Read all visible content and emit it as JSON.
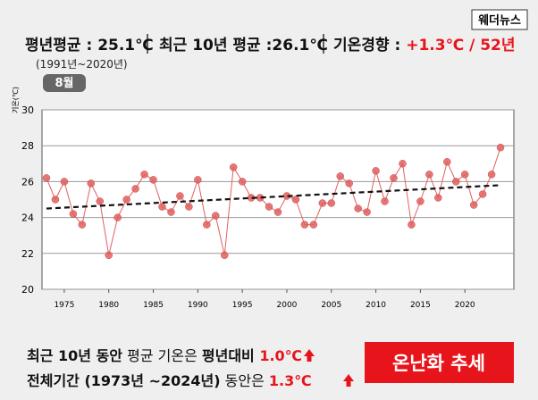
{
  "header": {
    "normal_avg": "평년평균 : 25.1℃",
    "normal_period": "(1991년~2020년)",
    "recent_avg": "최근 10년 평균 :26.1℃",
    "trend_label": "기온경향 : ",
    "trend_value": "+1.3℃ / 52년",
    "month": "8월",
    "logo": "웨더뉴스"
  },
  "chart_data": {
    "type": "line",
    "y_label": "기온(℃)",
    "x": [
      1973,
      1974,
      1975,
      1976,
      1977,
      1978,
      1979,
      1980,
      1981,
      1982,
      1983,
      1984,
      1985,
      1986,
      1987,
      1988,
      1989,
      1990,
      1991,
      1992,
      1993,
      1994,
      1995,
      1996,
      1997,
      1998,
      1999,
      2000,
      2001,
      2002,
      2003,
      2004,
      2005,
      2006,
      2007,
      2008,
      2009,
      2010,
      2011,
      2012,
      2013,
      2014,
      2015,
      2016,
      2017,
      2018,
      2019,
      2020,
      2021,
      2022,
      2023,
      2024
    ],
    "series": [
      {
        "color": "#e0605f",
        "values": [
          26.2,
          25.0,
          26.0,
          24.2,
          23.6,
          25.9,
          24.9,
          21.9,
          24.0,
          25.0,
          25.6,
          26.4,
          26.1,
          24.6,
          24.3,
          25.2,
          24.6,
          26.1,
          23.6,
          24.1,
          21.9,
          26.8,
          26.0,
          25.1,
          25.1,
          24.6,
          24.3,
          25.2,
          25.0,
          23.6,
          23.6,
          24.8,
          24.8,
          26.3,
          25.9,
          24.5,
          24.3,
          26.6,
          24.9,
          26.2,
          27.0,
          23.6,
          24.9,
          26.4,
          25.1,
          27.1,
          26.0,
          26.4,
          24.7,
          25.3,
          26.4,
          27.9
        ]
      }
    ],
    "trendline": {
      "x": [
        1973,
        2024
      ],
      "values": [
        24.5,
        25.8
      ],
      "color": "#111111"
    },
    "xlim": [
      1972.5,
      2025.5
    ],
    "xticks": [
      1975,
      1980,
      1985,
      1990,
      1995,
      2000,
      2005,
      2010,
      2015,
      2020
    ],
    "ylim": [
      20,
      30
    ],
    "yticks": [
      20,
      22,
      24,
      26,
      28,
      30
    ],
    "grid": true
  },
  "footer": {
    "line1": {
      "a": "최근 10년 동안",
      "b": " 평균 기온은 ",
      "c": "평년대비 ",
      "d": "1.0℃"
    },
    "line2": {
      "a": "전체기간 (1973년 ~2024년)",
      "b": " 동안은 ",
      "d": "1.3℃"
    },
    "badge": "온난화 추세"
  }
}
